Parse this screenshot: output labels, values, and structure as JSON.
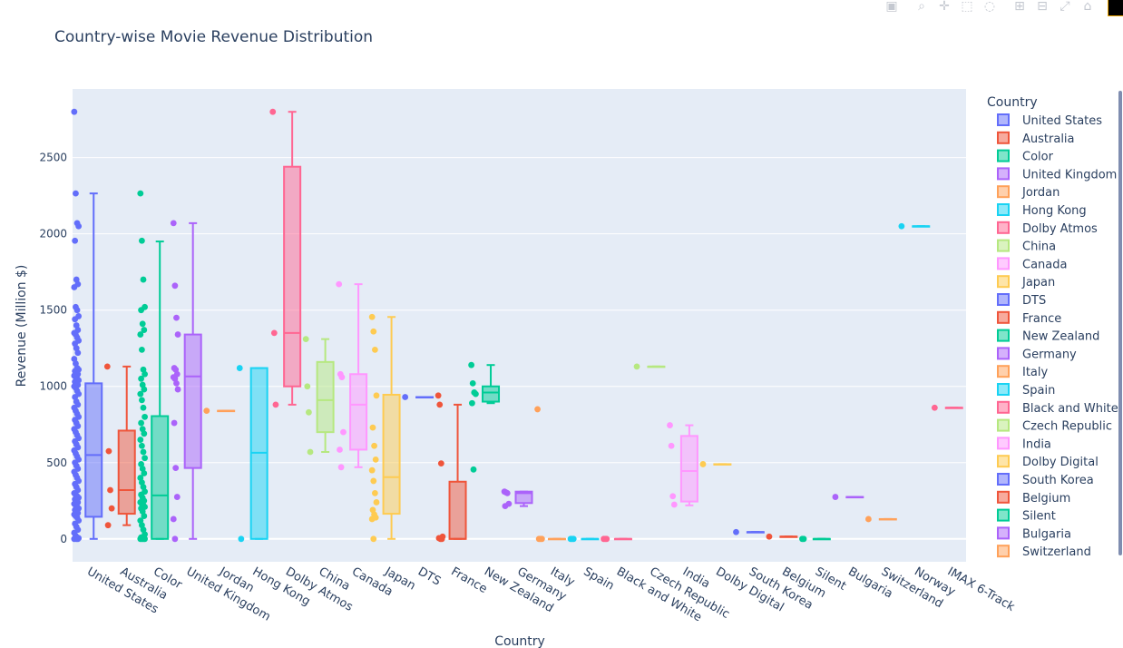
{
  "modebar": {
    "icons": [
      "camera-icon",
      "zoom-icon",
      "pan-icon",
      "box-select-icon",
      "lasso-icon",
      "zoom-in-icon",
      "zoom-out-icon",
      "autoscale-icon",
      "reset-axes-icon",
      "plotly-logo"
    ]
  },
  "chart_data": {
    "type": "box",
    "title": "Country-wise Movie Revenue Distribution",
    "xlabel": "Country",
    "ylabel": "Revenue (Million $)",
    "ylim": [
      -150,
      2950
    ],
    "yticks": [
      0,
      500,
      1000,
      1500,
      2000,
      2500
    ],
    "ytick_labels": [
      "0",
      "500",
      "1000",
      "1500",
      "2000",
      "2500"
    ],
    "grid": true,
    "legend_title": "Country",
    "legend_position": "right",
    "categories": [
      "United States",
      "Australia",
      "Color",
      "United Kingdom",
      "Jordan",
      "Hong Kong",
      "Dolby Atmos",
      "China",
      "Canada",
      "Japan",
      "DTS",
      "France",
      "New Zealand",
      "Germany",
      "Italy",
      "Spain",
      "Black and White",
      "Czech Republic",
      "India",
      "Dolby Digital",
      "South Korea",
      "Belgium",
      "Silent",
      "Bulgaria",
      "Switzerland",
      "Norway",
      "IMAX 6-Track"
    ],
    "legend_entries": [
      "United States",
      "Australia",
      "Color",
      "United Kingdom",
      "Jordan",
      "Hong Kong",
      "Dolby Atmos",
      "China",
      "Canada",
      "Japan",
      "DTS",
      "France",
      "New Zealand",
      "Germany",
      "Italy",
      "Spain",
      "Black and White",
      "Czech Republic",
      "India",
      "Dolby Digital",
      "South Korea",
      "Belgium",
      "Silent",
      "Bulgaria",
      "Switzerland"
    ],
    "colors": [
      "#636efa",
      "#EF553B",
      "#00cc96",
      "#ab63fa",
      "#FFA15A",
      "#19d3f3",
      "#FF6692",
      "#B6E880",
      "#FF97FF",
      "#FECB52"
    ],
    "series": [
      {
        "name": "United States",
        "min": 0,
        "q1": 145,
        "median": 550,
        "q3": 1020,
        "max": 2265,
        "points": [
          2800,
          2265,
          2070,
          2050,
          1955,
          1700,
          1670,
          1650,
          1520,
          1500,
          1460,
          1440,
          1400,
          1370,
          1350,
          1340,
          1320,
          1300,
          1280,
          1250,
          1220,
          1180,
          1150,
          1120,
          1110,
          1100,
          1090,
          1080,
          1070,
          1060,
          1050,
          1040,
          1030,
          1020,
          1010,
          1000,
          990,
          970,
          950,
          930,
          900,
          880,
          860,
          840,
          820,
          800,
          780,
          760,
          740,
          720,
          700,
          680,
          660,
          640,
          620,
          600,
          580,
          560,
          540,
          520,
          500,
          480,
          460,
          440,
          420,
          400,
          380,
          360,
          340,
          320,
          300,
          290,
          280,
          270,
          260,
          250,
          240,
          230,
          220,
          210,
          200,
          190,
          180,
          170,
          160,
          150,
          140,
          120,
          100,
          80,
          60,
          40,
          20,
          10,
          5,
          2,
          0,
          0,
          0
        ]
      },
      {
        "name": "Australia",
        "min": 90,
        "q1": 165,
        "median": 320,
        "q3": 710,
        "max": 1130,
        "points": [
          1130,
          575,
          320,
          200,
          90
        ]
      },
      {
        "name": "Color",
        "min": 0,
        "q1": 0,
        "median": 285,
        "q3": 805,
        "max": 1950,
        "points": [
          2265,
          1955,
          1700,
          1520,
          1500,
          1410,
          1370,
          1340,
          1240,
          1110,
          1080,
          1050,
          1010,
          980,
          950,
          910,
          860,
          800,
          760,
          720,
          690,
          650,
          610,
          570,
          530,
          490,
          460,
          430,
          400,
          370,
          340,
          310,
          290,
          270,
          250,
          240,
          230,
          220,
          210,
          200,
          180,
          150,
          120,
          90,
          60,
          30,
          10,
          5,
          2,
          0,
          0,
          0,
          0
        ]
      },
      {
        "name": "United Kingdom",
        "min": 0,
        "q1": 465,
        "median": 1065,
        "q3": 1340,
        "max": 2070,
        "points": [
          2070,
          1660,
          1450,
          1340,
          1120,
          1110,
          1080,
          1060,
          1050,
          1020,
          980,
          760,
          465,
          275,
          130,
          0
        ]
      },
      {
        "name": "Jordan",
        "min": 840,
        "q1": 840,
        "median": 840,
        "q3": 840,
        "max": 840,
        "points": [
          840
        ]
      },
      {
        "name": "Hong Kong",
        "min": 0,
        "q1": 0,
        "median": 565,
        "q3": 1120,
        "max": 1120,
        "points": [
          1120,
          0
        ]
      },
      {
        "name": "Dolby Atmos",
        "min": 880,
        "q1": 1000,
        "median": 1350,
        "q3": 2440,
        "max": 2800,
        "points": [
          2800,
          1350,
          880
        ]
      },
      {
        "name": "China",
        "min": 570,
        "q1": 700,
        "median": 910,
        "q3": 1160,
        "max": 1310,
        "points": [
          1310,
          1000,
          830,
          570
        ]
      },
      {
        "name": "Canada",
        "min": 470,
        "q1": 585,
        "median": 880,
        "q3": 1080,
        "max": 1670,
        "points": [
          1670,
          1080,
          1060,
          700,
          585,
          470
        ]
      },
      {
        "name": "Japan",
        "min": 0,
        "q1": 165,
        "median": 405,
        "q3": 945,
        "max": 1455,
        "points": [
          1455,
          1360,
          1240,
          940,
          730,
          610,
          520,
          450,
          380,
          300,
          240,
          190,
          160,
          140,
          130,
          0
        ]
      },
      {
        "name": "DTS",
        "min": 930,
        "q1": 930,
        "median": 930,
        "q3": 930,
        "max": 930,
        "points": [
          930
        ]
      },
      {
        "name": "France",
        "min": 0,
        "q1": 0,
        "median": 0,
        "q3": 375,
        "max": 880,
        "points": [
          940,
          880,
          495,
          15,
          5,
          0,
          0
        ]
      },
      {
        "name": "New Zealand",
        "min": 890,
        "q1": 900,
        "median": 960,
        "q3": 1000,
        "max": 1140,
        "points": [
          1140,
          1020,
          960,
          950,
          890,
          455
        ]
      },
      {
        "name": "Germany",
        "min": 215,
        "q1": 235,
        "median": 300,
        "q3": 310,
        "max": 310,
        "points": [
          310,
          305,
          300,
          230,
          215
        ]
      },
      {
        "name": "Italy",
        "min": 0,
        "q1": 0,
        "median": 0,
        "q3": 0,
        "max": 0,
        "points": [
          850,
          0,
          0,
          0
        ]
      },
      {
        "name": "Spain",
        "min": 0,
        "q1": 0,
        "median": 0,
        "q3": 0,
        "max": 0,
        "points": [
          0,
          0,
          0
        ]
      },
      {
        "name": "Black and White",
        "min": 0,
        "q1": 0,
        "median": 0,
        "q3": 0,
        "max": 0,
        "points": [
          0,
          0,
          0
        ]
      },
      {
        "name": "Czech Republic",
        "min": 1130,
        "q1": 1130,
        "median": 1130,
        "q3": 1130,
        "max": 1130,
        "points": [
          1130
        ]
      },
      {
        "name": "India",
        "min": 220,
        "q1": 245,
        "median": 445,
        "q3": 675,
        "max": 745,
        "points": [
          745,
          610,
          280,
          225
        ]
      },
      {
        "name": "Dolby Digital",
        "min": 490,
        "q1": 490,
        "median": 490,
        "q3": 490,
        "max": 490,
        "points": [
          490
        ]
      },
      {
        "name": "South Korea",
        "min": 45,
        "q1": 45,
        "median": 45,
        "q3": 45,
        "max": 45,
        "points": [
          45
        ]
      },
      {
        "name": "Belgium",
        "min": 15,
        "q1": 15,
        "median": 15,
        "q3": 15,
        "max": 15,
        "points": [
          15
        ]
      },
      {
        "name": "Silent",
        "min": 0,
        "q1": 0,
        "median": 0,
        "q3": 0,
        "max": 0,
        "points": [
          0,
          0
        ]
      },
      {
        "name": "Bulgaria",
        "min": 275,
        "q1": 275,
        "median": 275,
        "q3": 275,
        "max": 275,
        "points": [
          275
        ]
      },
      {
        "name": "Switzerland",
        "min": 130,
        "q1": 130,
        "median": 130,
        "q3": 130,
        "max": 130,
        "points": [
          130
        ]
      },
      {
        "name": "Norway",
        "min": 2050,
        "q1": 2050,
        "median": 2050,
        "q3": 2050,
        "max": 2050,
        "points": [
          2050
        ]
      },
      {
        "name": "IMAX 6-Track",
        "min": 860,
        "q1": 860,
        "median": 860,
        "q3": 860,
        "max": 860,
        "points": [
          860
        ]
      }
    ]
  }
}
